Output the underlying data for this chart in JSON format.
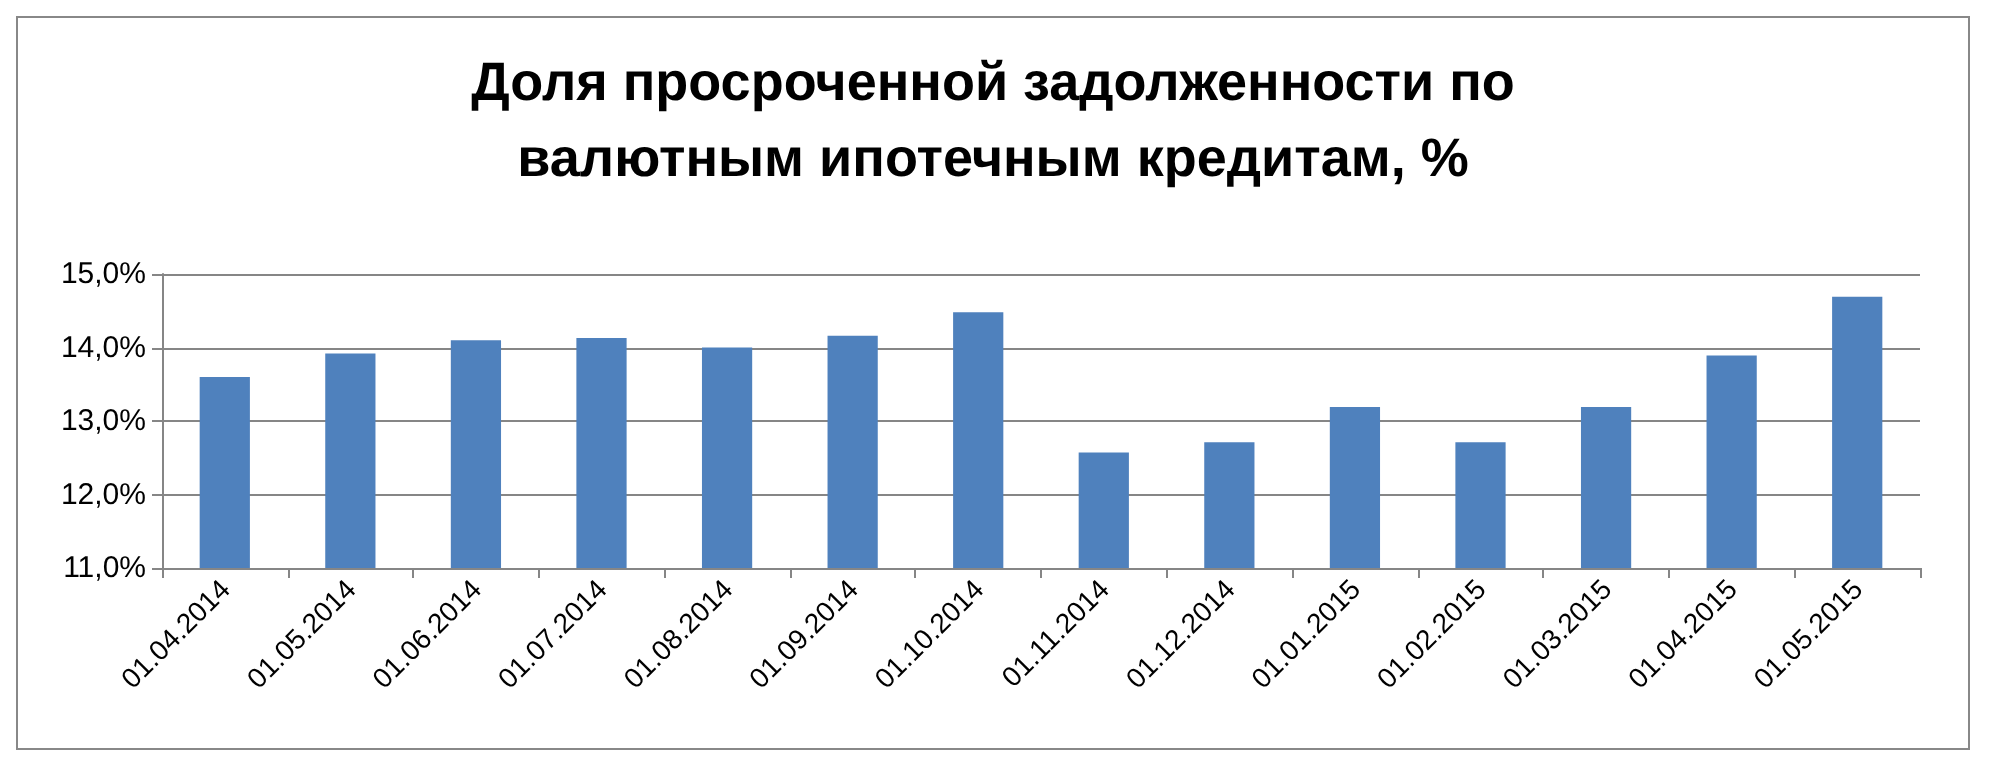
{
  "chart_data": {
    "type": "bar",
    "title": "Доля просроченной задолженности по\nвалютным ипотечным кредитам, %",
    "categories": [
      "01.04.2014",
      "01.05.2014",
      "01.06.2014",
      "01.07.2014",
      "01.08.2014",
      "01.09.2014",
      "01.10.2014",
      "01.11.2014",
      "01.12.2014",
      "01.01.2015",
      "01.02.2015",
      "01.03.2015",
      "01.04.2015",
      "01.05.2015"
    ],
    "values": [
      13.6,
      13.92,
      14.1,
      14.13,
      14.0,
      14.16,
      14.48,
      12.57,
      12.71,
      13.19,
      12.71,
      13.19,
      13.89,
      14.69
    ],
    "color": "#4f81bd",
    "ylim": [
      11,
      15
    ],
    "yticks": [
      {
        "value": 11,
        "label": "11,0%"
      },
      {
        "value": 12,
        "label": "12,0%"
      },
      {
        "value": 13,
        "label": "13,0%"
      },
      {
        "value": 14,
        "label": "14,0%"
      },
      {
        "value": 15,
        "label": "15,0%"
      }
    ],
    "grid": "y"
  }
}
